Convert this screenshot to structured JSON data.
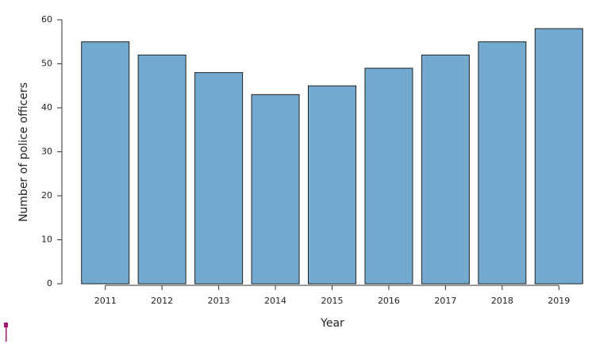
{
  "chart_data": {
    "type": "bar",
    "categories": [
      "2011",
      "2012",
      "2013",
      "2014",
      "2015",
      "2016",
      "2017",
      "2018",
      "2019"
    ],
    "values": [
      55,
      52,
      48,
      43,
      45,
      49,
      52,
      55,
      58
    ],
    "color": "#74a9cf",
    "x_label": "Year",
    "y_label": "Number of police officers",
    "ylim": [
      0,
      60
    ],
    "yticks": [
      0,
      10,
      20,
      30,
      40,
      50,
      60
    ],
    "grid": false
  }
}
